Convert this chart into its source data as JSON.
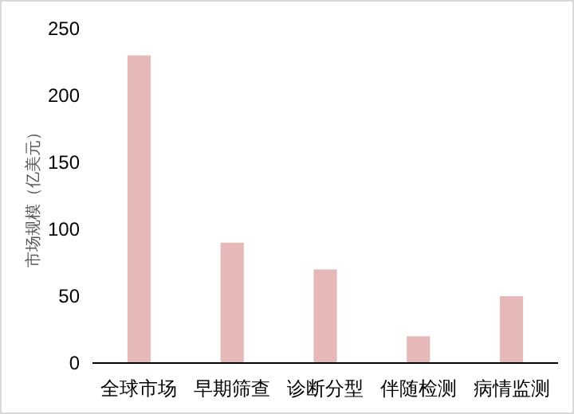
{
  "chart_data": {
    "type": "bar",
    "ylabel": "市场规模（亿美元）",
    "categories": [
      "全球市场",
      "早期筛查",
      "诊断分型",
      "伴随检测",
      "病情监测"
    ],
    "values": [
      230,
      90,
      70,
      20,
      50
    ],
    "color": "#e6b8b7",
    "ylim": [
      0,
      250
    ],
    "yticks": [
      0,
      50,
      100,
      150,
      200,
      250
    ]
  }
}
